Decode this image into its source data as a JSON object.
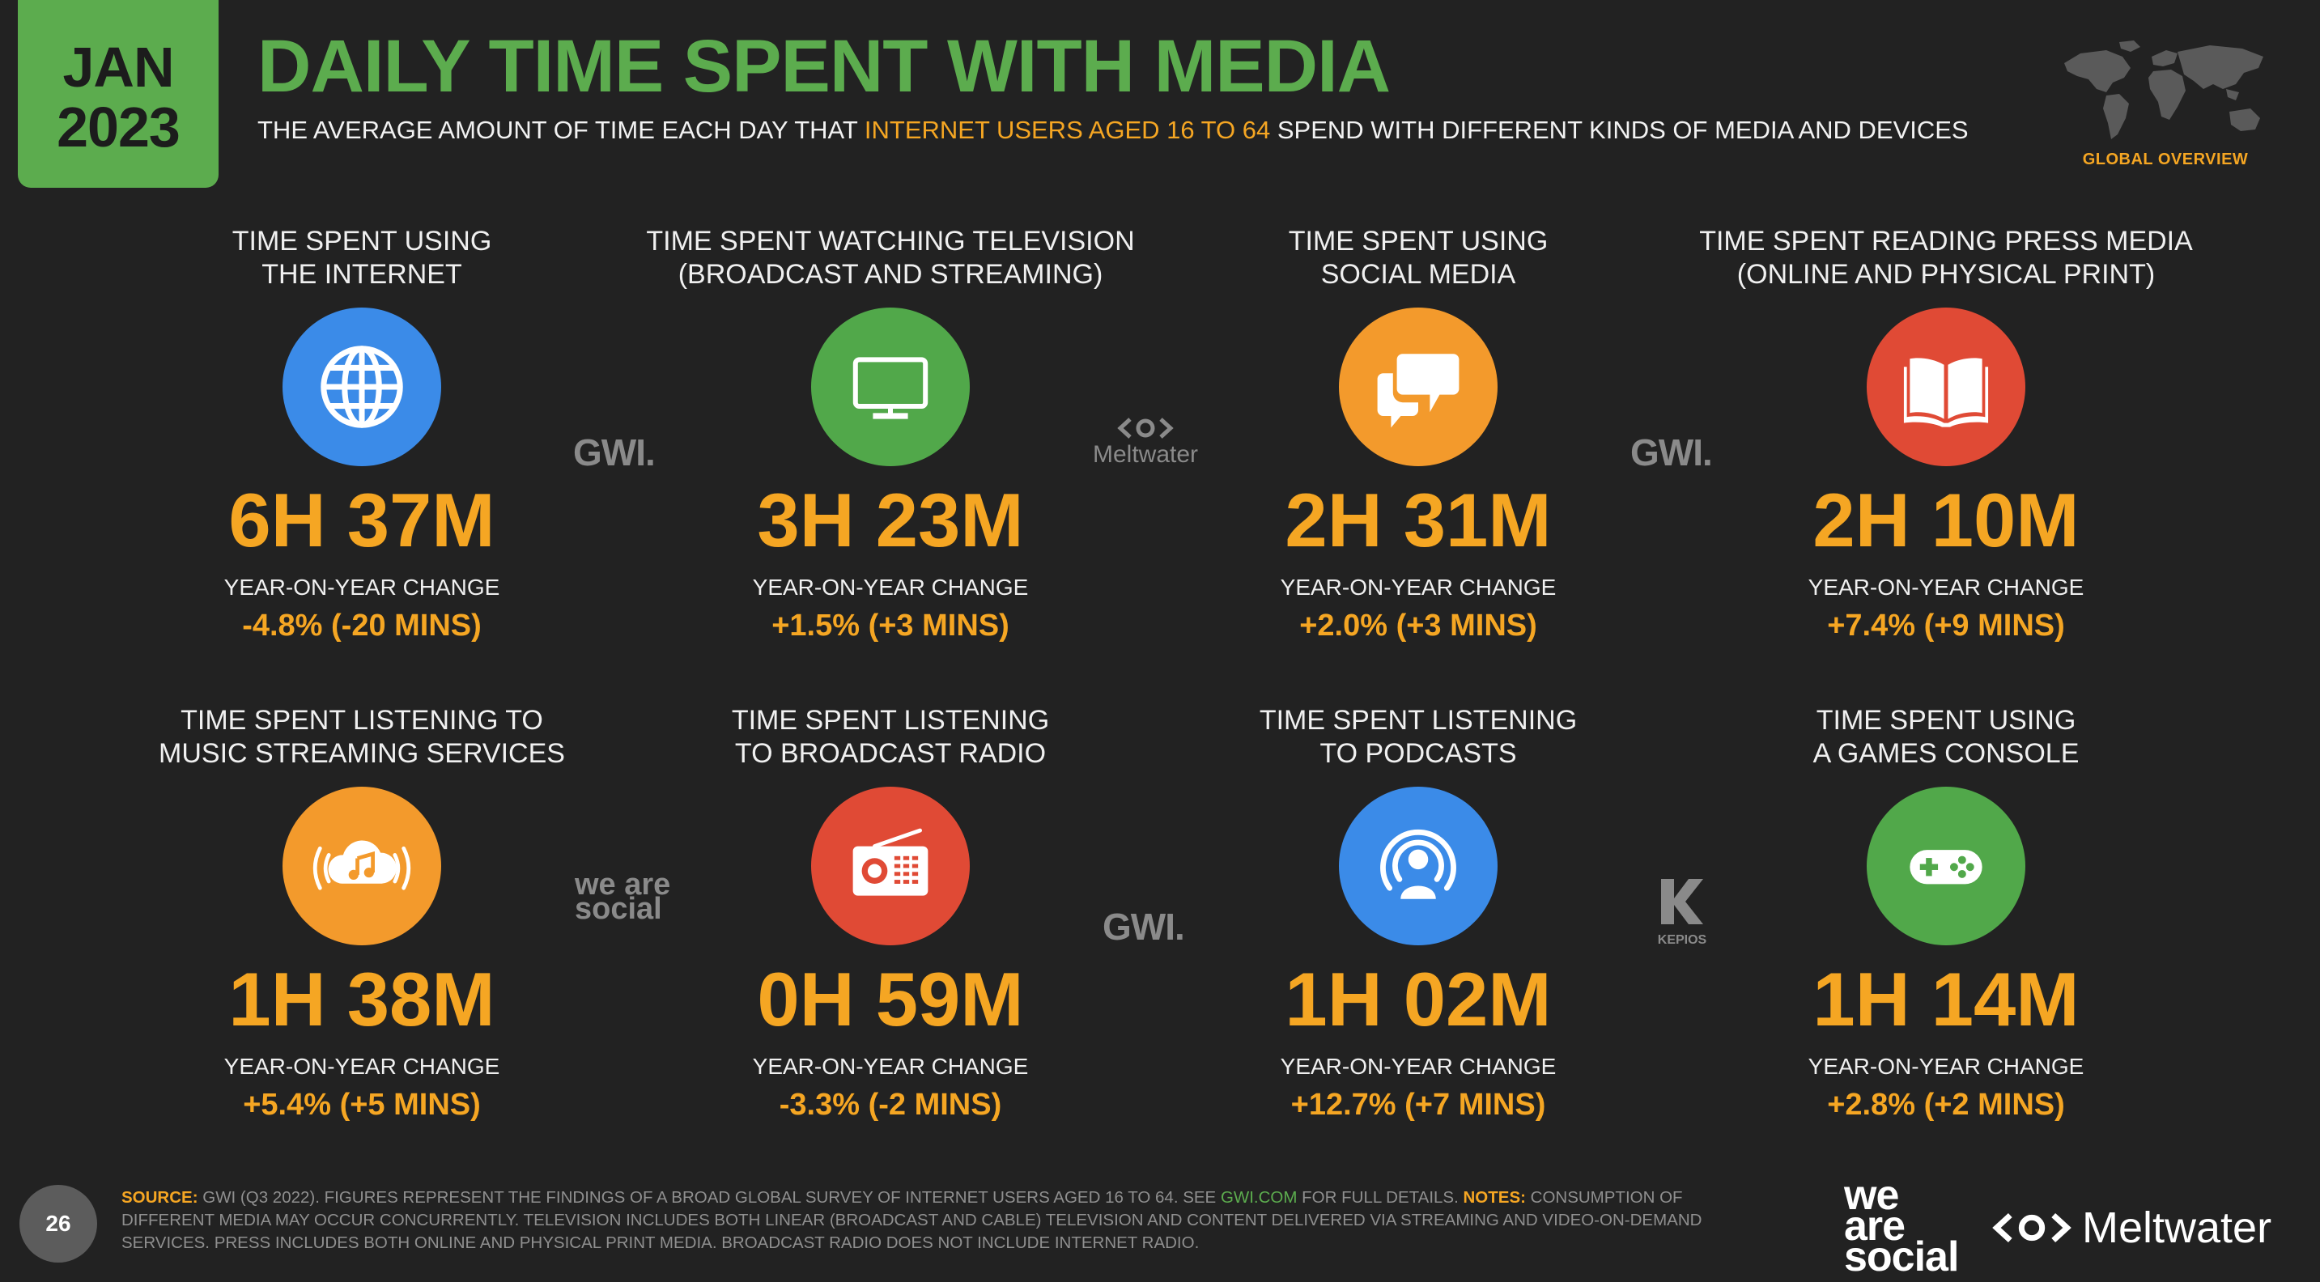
{
  "header": {
    "month": "JAN",
    "year": "2023",
    "title": "DAILY TIME SPENT WITH MEDIA",
    "subtitle_pre": "THE AVERAGE AMOUNT OF TIME EACH DAY THAT ",
    "subtitle_highlight": "INTERNET USERS AGED 16 TO 64",
    "subtitle_post": " SPEND WITH DIFFERENT KINDS OF MEDIA AND DEVICES",
    "region": "GLOBAL OVERVIEW"
  },
  "cards": [
    {
      "label": "TIME SPENT USING\nTHE INTERNET",
      "icon": "globe-icon",
      "color": "#3b8be8",
      "value": "6H 37M",
      "yoy_label": "YEAR-ON-YEAR CHANGE",
      "yoy": "-4.8% (-20 MINS)"
    },
    {
      "label": "TIME SPENT WATCHING TELEVISION\n(BROADCAST AND STREAMING)",
      "icon": "television-icon",
      "color": "#51a84a",
      "value": "3H 23M",
      "yoy_label": "YEAR-ON-YEAR CHANGE",
      "yoy": "+1.5% (+3 MINS)"
    },
    {
      "label": "TIME SPENT USING\nSOCIAL MEDIA",
      "icon": "chat-bubbles-icon",
      "color": "#f39a2c",
      "value": "2H 31M",
      "yoy_label": "YEAR-ON-YEAR CHANGE",
      "yoy": "+2.0% (+3 MINS)"
    },
    {
      "label": "TIME SPENT READING PRESS MEDIA\n(ONLINE AND PHYSICAL PRINT)",
      "icon": "open-book-icon",
      "color": "#e04a35",
      "value": "2H 10M",
      "yoy_label": "YEAR-ON-YEAR CHANGE",
      "yoy": "+7.4% (+9 MINS)"
    },
    {
      "label": "TIME SPENT LISTENING TO\nMUSIC STREAMING SERVICES",
      "icon": "music-cloud-icon",
      "color": "#f39a2c",
      "value": "1H 38M",
      "yoy_label": "YEAR-ON-YEAR CHANGE",
      "yoy": "+5.4% (+5 MINS)"
    },
    {
      "label": "TIME SPENT LISTENING\nTO BROADCAST RADIO",
      "icon": "radio-icon",
      "color": "#e04a35",
      "value": "0H 59M",
      "yoy_label": "YEAR-ON-YEAR CHANGE",
      "yoy": "-3.3% (-2 MINS)"
    },
    {
      "label": "TIME SPENT LISTENING\nTO PODCASTS",
      "icon": "podcast-icon",
      "color": "#3b8be8",
      "value": "1H 02M",
      "yoy_label": "YEAR-ON-YEAR CHANGE",
      "yoy": "+12.7% (+7 MINS)"
    },
    {
      "label": "TIME SPENT USING\nA GAMES CONSOLE",
      "icon": "gamepad-icon",
      "color": "#51a84a",
      "value": "1H 14M",
      "yoy_label": "YEAR-ON-YEAR CHANGE",
      "yoy": "+2.8% (+2 MINS)"
    }
  ],
  "source_logos": {
    "gwi": "GWI.",
    "meltwater": "Meltwater",
    "we_are_social": "we are social",
    "kepios": "KEPIOS"
  },
  "footer": {
    "page_number": "26",
    "source_key": "SOURCE:",
    "source_text": " GWI (Q3 2022). FIGURES REPRESENT THE FINDINGS OF A BROAD GLOBAL SURVEY OF INTERNET USERS AGED 16 TO 64. SEE ",
    "source_link": "GWI.COM",
    "source_text2": " FOR FULL DETAILS. ",
    "notes_key": "NOTES:",
    "notes_text": " CONSUMPTION OF DIFFERENT MEDIA MAY OCCUR CONCURRENTLY. TELEVISION INCLUDES BOTH LINEAR (BROADCAST AND CABLE) TELEVISION AND CONTENT DELIVERED VIA STREAMING AND VIDEO-ON-DEMAND SERVICES. PRESS INCLUDES BOTH ONLINE AND PHYSICAL PRINT MEDIA. BROADCAST RADIO DOES NOT INCLUDE INTERNET RADIO.",
    "we": "we",
    "are": "are",
    "social": "social",
    "meltwater": "Meltwater"
  }
}
